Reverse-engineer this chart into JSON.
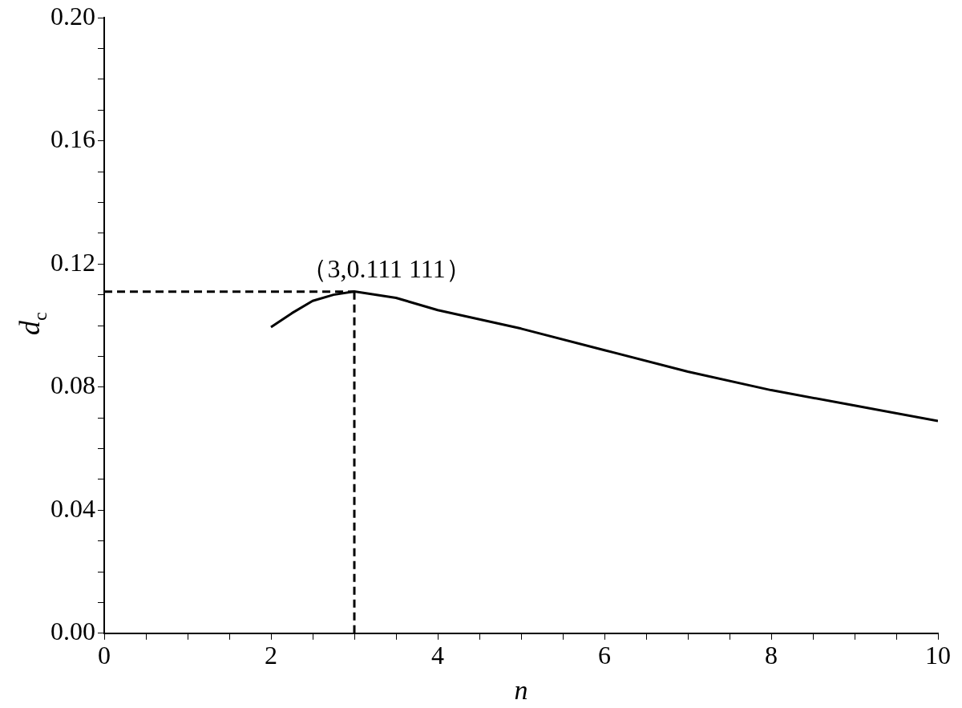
{
  "chart_data": {
    "type": "line",
    "xlabel": "n",
    "ylabel": "d$_{c}$",
    "xlim": [
      0,
      10
    ],
    "ylim": [
      0,
      0.2
    ],
    "xticks": [
      0,
      {
        "value": 0.5,
        "label": null
      },
      {
        "value": 1,
        "label": null
      },
      {
        "value": 1.5,
        "label": null
      },
      2,
      {
        "value": 2.5,
        "label": null
      },
      {
        "value": 3,
        "label": null
      },
      {
        "value": 3.5,
        "label": null
      },
      4,
      {
        "value": 4.5,
        "label": null
      },
      {
        "value": 5,
        "label": null
      },
      {
        "value": 5.5,
        "label": null
      },
      6,
      {
        "value": 6.5,
        "label": null
      },
      {
        "value": 7,
        "label": null
      },
      {
        "value": 7.5,
        "label": null
      },
      8,
      {
        "value": 8.5,
        "label": null
      },
      {
        "value": 9,
        "label": null
      },
      {
        "value": 9.5,
        "label": null
      },
      10
    ],
    "yticks": [
      {
        "value": 0,
        "label": "0.00"
      },
      {
        "value": 0.01,
        "label": null
      },
      {
        "value": 0.02,
        "label": null
      },
      {
        "value": 0.03,
        "label": null
      },
      {
        "value": 0.04,
        "label": "0.04"
      },
      {
        "value": 0.05,
        "label": null
      },
      {
        "value": 0.06,
        "label": null
      },
      {
        "value": 0.07,
        "label": null
      },
      {
        "value": 0.08,
        "label": "0.08"
      },
      {
        "value": 0.09,
        "label": null
      },
      {
        "value": 0.1,
        "label": null
      },
      {
        "value": 0.11,
        "label": null
      },
      {
        "value": 0.12,
        "label": "0.12"
      },
      {
        "value": 0.13,
        "label": null
      },
      {
        "value": 0.14,
        "label": null
      },
      {
        "value": 0.15,
        "label": null
      },
      {
        "value": 0.16,
        "label": "0.16"
      },
      {
        "value": 0.17,
        "label": null
      },
      {
        "value": 0.18,
        "label": null
      },
      {
        "value": 0.19,
        "label": null
      },
      {
        "value": 0.2,
        "label": "0.20"
      }
    ],
    "grid": false,
    "legend": false,
    "marker": "none",
    "series": [
      {
        "color": "#000000",
        "line_style": "solid",
        "x": [
          2,
          2.25,
          2.5,
          2.75,
          3,
          3.5,
          4,
          5,
          6,
          7,
          8,
          9,
          10
        ],
        "values": [
          0.0995,
          0.104,
          0.108,
          0.11,
          0.1111,
          0.109,
          0.105,
          0.099,
          0.092,
          0.085,
          0.079,
          0.074,
          0.069
        ]
      },
      {
        "color": "#000000",
        "line_style": "dashed",
        "x": [
          0,
          3
        ],
        "values": [
          0.111,
          0.111
        ]
      },
      {
        "color": "#000000",
        "line_style": "dashed",
        "x": [
          3,
          3
        ],
        "values": [
          0,
          0.111
        ]
      }
    ],
    "annotations": [
      {
        "text": "（3,0.111 111）",
        "x": 3,
        "y": 0.111111
      }
    ]
  }
}
